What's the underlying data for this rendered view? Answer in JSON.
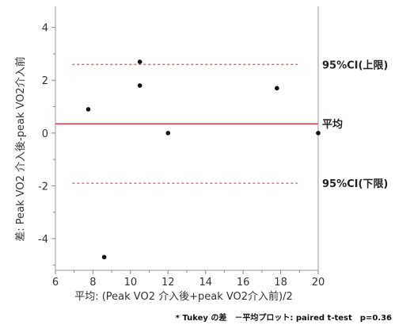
{
  "chart_data": {
    "type": "scatter",
    "title": "",
    "xlabel": "平均: (Peak VO2 介入後+peak VO2介入前)/2",
    "ylabel": "差: Peak VO2 介入後-peak VO2介入前",
    "xlim": [
      6,
      20
    ],
    "ylim": [
      -5.2,
      4.8
    ],
    "xticks": [
      6,
      8,
      10,
      12,
      14,
      16,
      18,
      20
    ],
    "yticks": [
      -4,
      -2,
      0,
      2,
      4
    ],
    "grid": false,
    "points": [
      {
        "x": 7.75,
        "y": 0.9
      },
      {
        "x": 8.6,
        "y": -4.7
      },
      {
        "x": 10.5,
        "y": 2.7
      },
      {
        "x": 10.5,
        "y": 1.8
      },
      {
        "x": 12.0,
        "y": 0.0
      },
      {
        "x": 17.8,
        "y": 1.7
      },
      {
        "x": 20.0,
        "y": 0.0
      }
    ],
    "reference_lines": [
      {
        "name": "95%CI(上限)",
        "y": 2.6,
        "x_range": [
          6.9,
          18.9
        ],
        "style": "dotted",
        "color": "#d9534f"
      },
      {
        "name": "平均",
        "y": 0.35,
        "x_range": [
          6,
          20
        ],
        "style": "solid",
        "color": "#e0435a"
      },
      {
        "name": "95%CI(下限)",
        "y": -1.9,
        "x_range": [
          6.9,
          18.9
        ],
        "style": "dotted",
        "color": "#d9534f"
      }
    ],
    "footnote": "* Tukey の差　－平均プロット: paired t-test　p=0.36"
  },
  "colors": {
    "point": "#111111",
    "axis": "#888888",
    "mean_line": "#e0435a",
    "ci_line": "#d9534f"
  }
}
